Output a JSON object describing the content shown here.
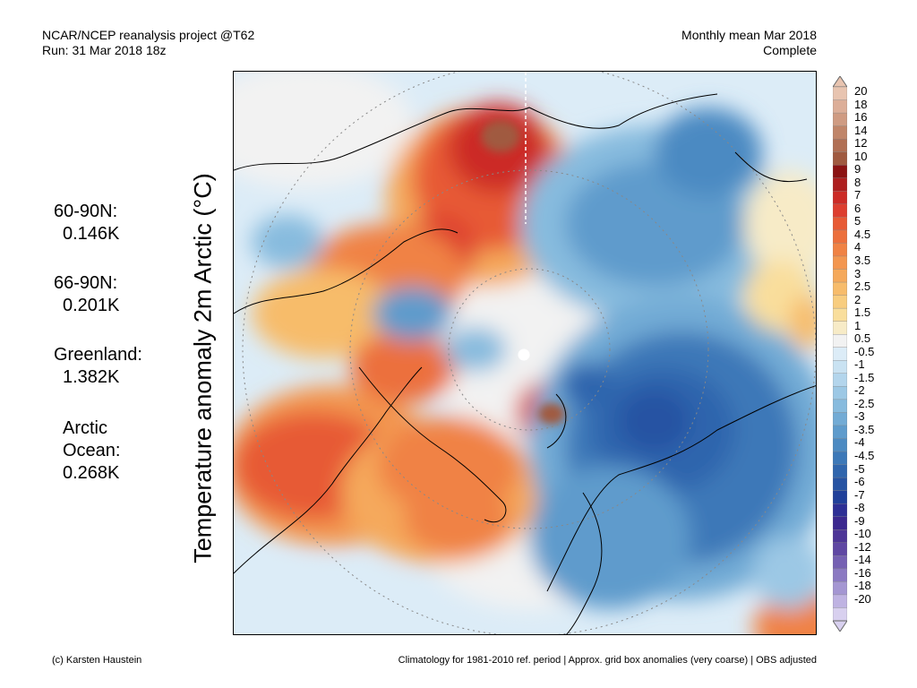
{
  "header": {
    "source": "NCAR/NCEP reanalysis project @T62",
    "run": "Run: 31 Mar 2018 18z",
    "period": "Monthly mean Mar 2018",
    "status": "Complete"
  },
  "stats": [
    {
      "label": "60-90N:",
      "value": "0.146K"
    },
    {
      "label": "66-90N:",
      "value": "0.201K"
    },
    {
      "label": "Greenland:",
      "value": "1.382K"
    },
    {
      "label": "Arctic",
      "label2": "Ocean:",
      "value": "0.268K"
    }
  ],
  "axis_title": "Temperature anomaly 2m Arctic (°C)",
  "colorbar": {
    "labels": [
      "20",
      "18",
      "16",
      "14",
      "12",
      "10",
      "9",
      "8",
      "7",
      "6",
      "5",
      "4.5",
      "4",
      "3.5",
      "3",
      "2.5",
      "2",
      "1.5",
      "1",
      "0.5",
      "-0.5",
      "-1",
      "-1.5",
      "-2",
      "-2.5",
      "-3",
      "-3.5",
      "-4",
      "-4.5",
      "-5",
      "-6",
      "-7",
      "-8",
      "-9",
      "-10",
      "-12",
      "-14",
      "-16",
      "-18",
      "-20"
    ],
    "colors": [
      "#e8c4b0",
      "#dcae98",
      "#cf9b82",
      "#c08569",
      "#b16f54",
      "#a05a40",
      "#8b1313",
      "#ae1f1f",
      "#cc2b26",
      "#dd3e2f",
      "#e75a35",
      "#ec6f3c",
      "#f08244",
      "#f3964f",
      "#f5a95b",
      "#f7bc6b",
      "#f8cd7f",
      "#f9de9c",
      "#f7ebc7",
      "#f2f2f2",
      "#dcecf7",
      "#c9e2f2",
      "#b3d5ec",
      "#9cc8e5",
      "#87bbde",
      "#72abd5",
      "#5e9bcc",
      "#4c8ac2",
      "#3c78b8",
      "#2f65ad",
      "#2653a3",
      "#20409a",
      "#2d2f95",
      "#3b288f",
      "#4d3597",
      "#5f47a3",
      "#7560b3",
      "#8b79c2",
      "#a496d2",
      "#bfb3e2",
      "#d8d0ef"
    ]
  },
  "footer": {
    "credit": "(c) Karsten Haustein",
    "note": "Climatology for 1981-2010 ref. period | Approx. grid box anomalies (very coarse) | OBS adjusted"
  }
}
